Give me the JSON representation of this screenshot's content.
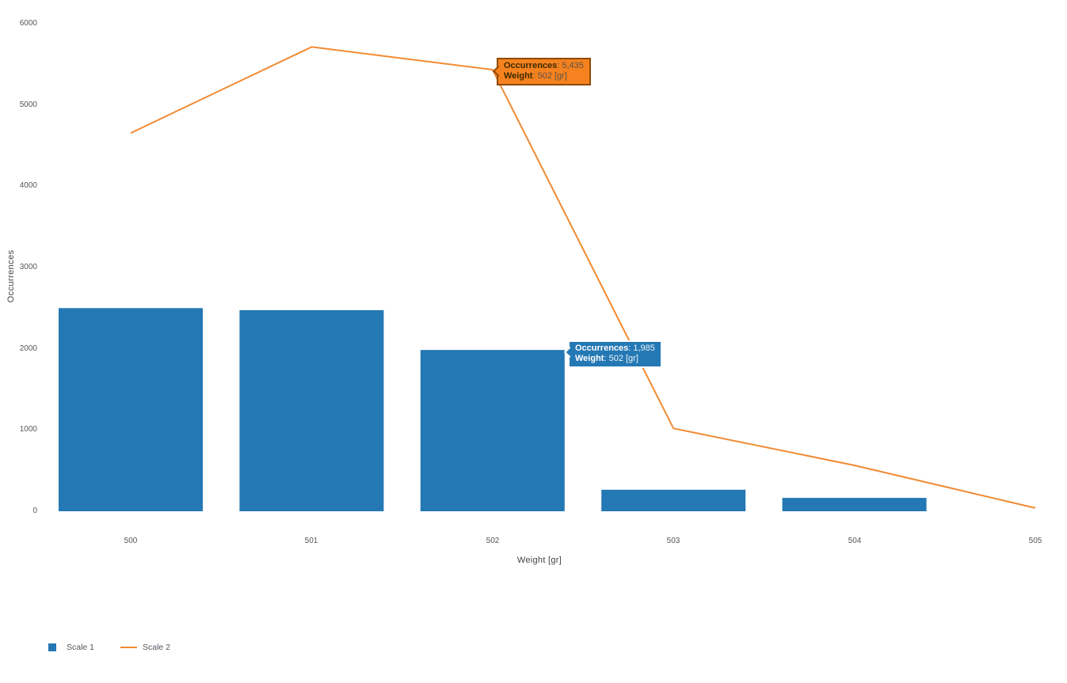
{
  "chart_data": {
    "type": "bar+line",
    "title": "",
    "xlabel": "Weight [gr]",
    "ylabel": "Occurrences",
    "categories": [
      500,
      501,
      502,
      503,
      504,
      505
    ],
    "xtick_labels": [
      "500",
      "501",
      "502",
      "503",
      "504",
      "505"
    ],
    "ytick_labels": [
      "0",
      "1000",
      "2000",
      "3000",
      "4000",
      "5000",
      "6000"
    ],
    "ytick_values": [
      0,
      1000,
      2000,
      3000,
      4000,
      5000,
      6000
    ],
    "ylim": [
      0,
      6000
    ],
    "grid": false,
    "background": "#ffffff",
    "legend_position": "bottom-left",
    "series": [
      {
        "name": "Scale 1",
        "type": "bar",
        "color": "#2478b4",
        "values": [
          2500,
          2475,
          1985,
          265,
          165,
          null
        ]
      },
      {
        "name": "Scale 2",
        "type": "line",
        "color": "#f18a33",
        "values": [
          4655,
          5715,
          5435,
          1020,
          565,
          40
        ]
      }
    ]
  },
  "tooltips": {
    "line_point": {
      "bg": "#f5821f",
      "border": "#8f4a00",
      "anchor_weight": 502,
      "rows": [
        {
          "label": "Occurrences",
          "value": ": 5,435"
        },
        {
          "label": "Weight",
          "value": ": 502 [gr]"
        }
      ]
    },
    "bar_point": {
      "bg": "#2478b4",
      "border": "#ffffff",
      "anchor_weight": 502,
      "rows": [
        {
          "label": "Occurrences",
          "value": ": 1,985"
        },
        {
          "label": "Weight",
          "value": ": 502 [gr]"
        }
      ]
    }
  },
  "colors": {
    "bar": "#2478b4",
    "line": "#f18a33",
    "tick_text": "#565656",
    "axis_title_text": "#42424a"
  }
}
